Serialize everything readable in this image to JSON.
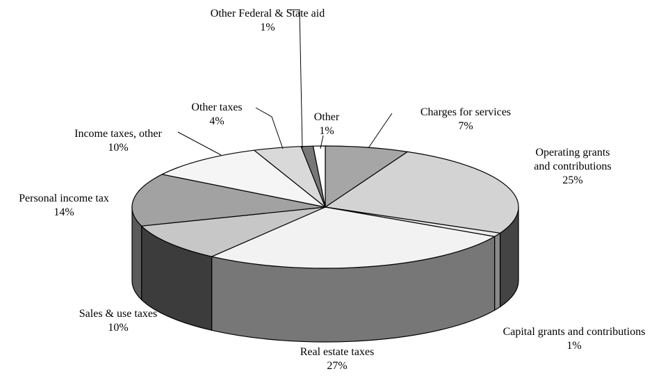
{
  "chart_data": {
    "type": "pie",
    "title": "",
    "slices": [
      {
        "name": "Charges for services",
        "value": 7,
        "value_label": "7%",
        "color": "#a6a6a6",
        "side_color": "#6e6e6e"
      },
      {
        "name": "Operating grants and contributions",
        "value": 25,
        "value_label": "25%",
        "color": "#d3d3d3",
        "side_color": "#444444"
      },
      {
        "name": "Capital grants and contributions",
        "value": 1,
        "value_label": "1%",
        "color": "#ebebeb",
        "side_color": "#8a8a8a"
      },
      {
        "name": "Real estate taxes",
        "value": 27,
        "value_label": "27%",
        "color": "#f2f2f2",
        "side_color": "#777777"
      },
      {
        "name": "Sales & use taxes",
        "value": 10,
        "value_label": "10%",
        "color": "#c7c7c7",
        "side_color": "#3c3c3c"
      },
      {
        "name": "Personal income tax",
        "value": 14,
        "value_label": "14%",
        "color": "#a2a2a2",
        "side_color": "#5b5b5b"
      },
      {
        "name": "Income taxes, other",
        "value": 10,
        "value_label": "10%",
        "color": "#f5f5f5",
        "side_color": "#9a9a9a"
      },
      {
        "name": "Other taxes",
        "value": 4,
        "value_label": "4%",
        "color": "#d9d9d9",
        "side_color": "#7a7a7a"
      },
      {
        "name": "Other Federal & State aid",
        "value": 1,
        "value_label": "1%",
        "color": "#777777",
        "side_color": "#444444"
      },
      {
        "name": "Other",
        "value": 1,
        "value_label": "1%",
        "color": "#ffffff",
        "side_color": "#888888"
      }
    ],
    "labels": [
      {
        "lines": [
          "Charges for services",
          "7%"
        ]
      },
      {
        "lines": [
          "Operating grants",
          "and contributions",
          "25%"
        ]
      },
      {
        "lines": [
          "Capital grants and contributions",
          "1%"
        ]
      },
      {
        "lines": [
          "Real estate taxes",
          "27%"
        ]
      },
      {
        "lines": [
          "Sales & use taxes",
          "10%"
        ]
      },
      {
        "lines": [
          "Personal income tax",
          "14%"
        ]
      },
      {
        "lines": [
          "Income taxes, other",
          "10%"
        ]
      },
      {
        "lines": [
          "Other taxes",
          "4%"
        ]
      },
      {
        "lines": [
          "Other Federal & State aid",
          "1%"
        ]
      },
      {
        "lines": [
          "Other",
          "1%"
        ]
      }
    ],
    "legend": "none",
    "grid": false
  }
}
